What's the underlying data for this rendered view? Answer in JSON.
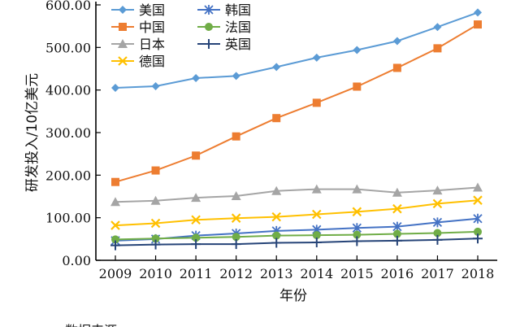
{
  "chart_data": {
    "type": "line",
    "title": "",
    "xlabel": "年份",
    "ylabel": "研发投入/10亿美元",
    "x": [
      2009,
      2010,
      2011,
      2012,
      2013,
      2014,
      2015,
      2016,
      2017,
      2018
    ],
    "xtick_labels": [
      "2009",
      "2010",
      "2011",
      "2012",
      "2013",
      "2014",
      "2015",
      "2016",
      "2017",
      "2018"
    ],
    "ylim": [
      0,
      600
    ],
    "yticks": [
      0,
      100,
      200,
      300,
      400,
      500,
      600
    ],
    "ytick_labels": [
      "0.00",
      "100.00",
      "200.00",
      "300.00",
      "400.00",
      "500.00",
      "600.00"
    ],
    "grid": false,
    "legend_position": "top-left",
    "series": [
      {
        "name": "美国",
        "color": "#5b9bd5",
        "marker": "diamond",
        "values": [
          405,
          409,
          428,
          433,
          454,
          476,
          494,
          515,
          548,
          582
        ]
      },
      {
        "name": "中国",
        "color": "#ed7d31",
        "marker": "square",
        "values": [
          184,
          211,
          246,
          291,
          334,
          370,
          408,
          452,
          498,
          554
        ]
      },
      {
        "name": "日本",
        "color": "#a5a5a5",
        "marker": "triangle",
        "values": [
          137,
          140,
          147,
          151,
          163,
          167,
          167,
          159,
          164,
          171
        ]
      },
      {
        "name": "德国",
        "color": "#ffc000",
        "marker": "x",
        "values": [
          82,
          87,
          95,
          99,
          102,
          108,
          114,
          121,
          133,
          141
        ]
      },
      {
        "name": "韩国",
        "color": "#4472c4",
        "marker": "star",
        "values": [
          46,
          50,
          58,
          63,
          69,
          72,
          76,
          79,
          89,
          98
        ]
      },
      {
        "name": "法国",
        "color": "#70ad47",
        "marker": "circle",
        "values": [
          49,
          51,
          53,
          55,
          58,
          59,
          60,
          62,
          64,
          67
        ]
      },
      {
        "name": "英国",
        "color": "#264478",
        "marker": "plus",
        "values": [
          35,
          37,
          38,
          38,
          41,
          42,
          45,
          46,
          48,
          51
        ]
      }
    ]
  },
  "footnote": "数据来源"
}
